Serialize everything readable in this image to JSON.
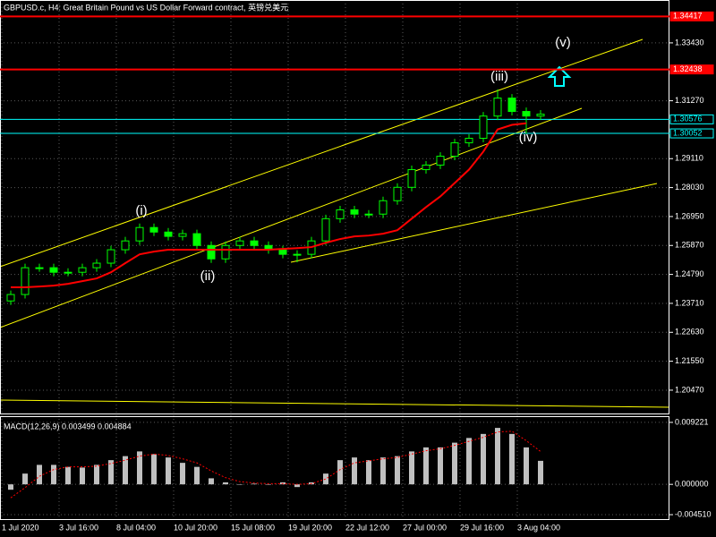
{
  "chart_data": [
    {
      "type": "candlestick",
      "title": "GBPUSD.c, H4:  Great Britain Pound vs US Dollar Forward contract, 英镑兑美元",
      "categories": [
        "1 Jul 2020",
        null,
        null,
        null,
        "3 Jul 16:00",
        null,
        null,
        null,
        "8 Jul 04:00",
        null,
        null,
        null,
        "10 Jul 20:00",
        null,
        null,
        null,
        "15 Jul 08:00",
        null,
        null,
        null,
        "19 Jul 20:00",
        null,
        null,
        null,
        "22 Jul 12:00",
        null,
        null,
        null,
        "27 Jul 00:00",
        null,
        null,
        null,
        "29 Jul 16:00",
        null,
        null,
        null,
        "3 Aug 04:00",
        null
      ],
      "open": [
        1.238,
        1.2404,
        1.2504,
        1.2504,
        1.2487,
        1.2487,
        1.2504,
        1.2521,
        1.2571,
        1.2604,
        1.2654,
        1.2637,
        1.2621,
        1.2631,
        1.2587,
        1.2537,
        1.2587,
        1.2604,
        1.2587,
        1.2571,
        1.2554,
        1.2554,
        1.2604,
        1.2687,
        1.272,
        1.2704,
        1.2704,
        1.2754,
        1.2804,
        1.287,
        1.2887,
        1.292,
        1.297,
        1.2987,
        1.307,
        1.3137,
        1.3087,
        1.307
      ],
      "high": [
        1.2419,
        1.2519,
        1.2519,
        1.2519,
        1.2502,
        1.2519,
        1.2536,
        1.2586,
        1.2619,
        1.2669,
        1.2669,
        1.2652,
        1.2646,
        1.2646,
        1.2602,
        1.2602,
        1.2619,
        1.2619,
        1.2602,
        1.2586,
        1.2569,
        1.2619,
        1.2702,
        1.2735,
        1.2735,
        1.2719,
        1.2769,
        1.2819,
        1.2885,
        1.2902,
        1.2935,
        1.2985,
        1.3002,
        1.3085,
        1.317,
        1.3152,
        1.3102,
        1.3092
      ],
      "low": [
        1.2365,
        1.2389,
        1.2489,
        1.2472,
        1.2472,
        1.2472,
        1.2489,
        1.2506,
        1.2556,
        1.2589,
        1.2622,
        1.2606,
        1.2606,
        1.2572,
        1.2522,
        1.2522,
        1.2572,
        1.2572,
        1.2556,
        1.2539,
        1.2524,
        1.2539,
        1.2589,
        1.2672,
        1.2689,
        1.2689,
        1.2689,
        1.2739,
        1.2789,
        1.2855,
        1.2872,
        1.2905,
        1.2955,
        1.2972,
        1.3055,
        1.3072,
        1.3005,
        1.3055
      ],
      "close": [
        1.2404,
        1.2504,
        1.2504,
        1.2487,
        1.2487,
        1.2504,
        1.2521,
        1.2571,
        1.2604,
        1.2654,
        1.2637,
        1.2621,
        1.2631,
        1.2587,
        1.2537,
        1.2587,
        1.2604,
        1.2587,
        1.2571,
        1.2554,
        1.2554,
        1.2604,
        1.2687,
        1.272,
        1.2704,
        1.2704,
        1.2754,
        1.2804,
        1.287,
        1.2887,
        1.292,
        1.297,
        1.2987,
        1.307,
        1.3137,
        1.3087,
        1.307,
        1.3077
      ],
      "color": "#00ff00",
      "series": [
        {
          "type": "line",
          "color": "#ff0000",
          "values": [
            1.2431,
            1.2431,
            1.2434,
            1.2437,
            1.2444,
            1.2454,
            1.2464,
            1.2487,
            1.2521,
            1.2554,
            1.2564,
            1.2571,
            1.2571,
            1.2571,
            1.2571,
            1.2571,
            1.2571,
            1.2571,
            1.2571,
            1.2574,
            1.2577,
            1.2581,
            1.2597,
            1.2611,
            1.2621,
            1.2624,
            1.2631,
            1.2644,
            1.2687,
            1.273,
            1.277,
            1.282,
            1.287,
            1.2937,
            1.302,
            1.3037,
            1.3043,
            null
          ]
        }
      ],
      "levels": [
        {
          "value": 1.34417,
          "color": "#ff0000"
        },
        {
          "value": 1.32438,
          "color": "#ff0000"
        },
        {
          "value": 1.30576,
          "color": "#00ffff"
        },
        {
          "value": 1.30052,
          "color": "#00ffff"
        }
      ],
      "annotations": [
        "(i)",
        "(ii)",
        "(iii)",
        "(iv)",
        "(v)"
      ],
      "ylim": [
        1.196,
        1.3503
      ],
      "yticks": [
        {
          "value": 1.3343,
          "label": "1.33430"
        },
        {
          "value": 1.3127,
          "label": "1.31270"
        },
        {
          "value": 1.2911,
          "label": "1.29110"
        },
        {
          "value": 1.2803,
          "label": "1.28030"
        },
        {
          "value": 1.2695,
          "label": "1.26950"
        },
        {
          "value": 1.2587,
          "label": "1.25870"
        },
        {
          "value": 1.2479,
          "label": "1.24790"
        },
        {
          "value": 1.2371,
          "label": "1.23710"
        },
        {
          "value": 1.2263,
          "label": "1.22630"
        },
        {
          "value": 1.2155,
          "label": "1.21550"
        },
        {
          "value": 1.2047,
          "label": "1.20470"
        }
      ],
      "grid": true
    },
    {
      "type": "macd",
      "title": "MACD(12,26,9) 0.003499 0.004884",
      "series": [
        {
          "type": "bar",
          "color": "#c0c0c0",
          "values": [
            -0.0008,
            0.0016,
            0.0029,
            0.0029,
            0.0026,
            0.0025,
            0.0029,
            0.0036,
            0.0042,
            0.0049,
            0.0045,
            0.004,
            0.0032,
            0.0026,
            0.0009,
            0.0003,
            0.0,
            0.0001,
            0.0,
            0.0003,
            -0.0004,
            0.0003,
            0.0016,
            0.0036,
            0.004,
            0.0036,
            0.004,
            0.0042,
            0.0049,
            0.0055,
            0.0055,
            0.0062,
            0.0069,
            0.0075,
            0.0084,
            0.0075,
            0.0055,
            0.003499
          ]
        },
        {
          "type": "line",
          "color": "#ff0000",
          "values": [
            -0.002,
            -0.0005,
            0.0012,
            0.0022,
            0.0026,
            0.0026,
            0.0027,
            0.0031,
            0.0036,
            0.0042,
            0.0045,
            0.0043,
            0.0038,
            0.0032,
            0.002,
            0.001,
            0.0004,
            0.0002,
            0.0001,
            0.0001,
            0.0,
            0.0001,
            0.0008,
            0.0022,
            0.0032,
            0.0035,
            0.0038,
            0.004,
            0.0045,
            0.005,
            0.0053,
            0.0058,
            0.0064,
            0.007,
            0.0078,
            0.0079,
            0.0065,
            0.004884
          ]
        }
      ],
      "ylim": [
        -0.00517,
        0.01001
      ],
      "yticks": [
        0.009221,
        {
          "value": 0,
          "label": "0.000000"
        },
        {
          "value": -0.00451,
          "label": "-0.004510"
        }
      ],
      "grid": true
    }
  ]
}
